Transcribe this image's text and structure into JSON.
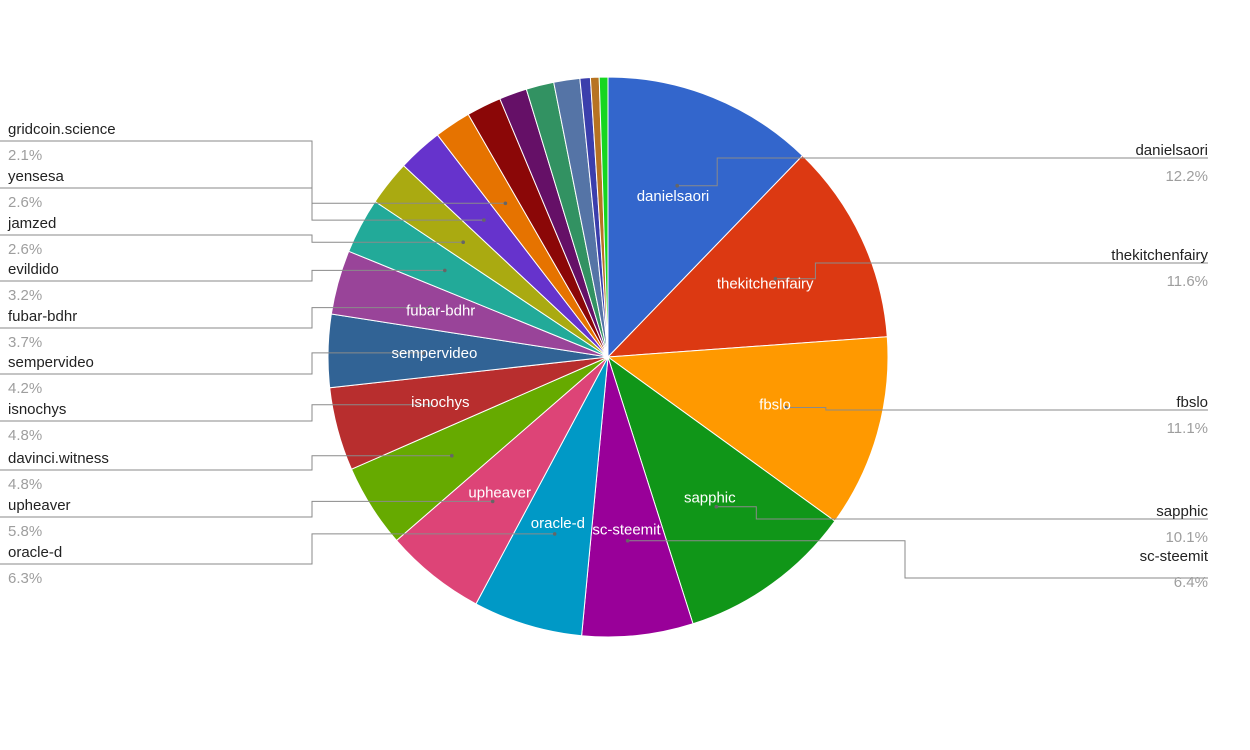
{
  "chart_data": {
    "type": "pie",
    "title": "",
    "start_angle_deg": 0,
    "direction": "clockwise",
    "slices": [
      {
        "label": "danielsaori",
        "value": 12.2,
        "pct": "12.2%",
        "color": "#3366cc",
        "inner": true,
        "legend": true
      },
      {
        "label": "thekitchenfairy",
        "value": 11.6,
        "pct": "11.6%",
        "color": "#dc3912",
        "inner": true,
        "legend": true
      },
      {
        "label": "fbslo",
        "value": 11.1,
        "pct": "11.1%",
        "color": "#ff9900",
        "inner": true,
        "legend": true
      },
      {
        "label": "sapphic",
        "value": 10.1,
        "pct": "10.1%",
        "color": "#109618",
        "inner": true,
        "legend": true
      },
      {
        "label": "sc-steemit",
        "value": 6.4,
        "pct": "6.4%",
        "color": "#990099",
        "inner": true,
        "legend": true
      },
      {
        "label": "oracle-d",
        "value": 6.3,
        "pct": "6.3%",
        "color": "#0099c6",
        "inner": true,
        "legend": true
      },
      {
        "label": "upheaver",
        "value": 5.8,
        "pct": "5.8%",
        "color": "#dd4477",
        "inner": true,
        "legend": true
      },
      {
        "label": "davinci.witness",
        "value": 4.8,
        "pct": "4.8%",
        "color": "#66aa00",
        "inner": false,
        "legend": true
      },
      {
        "label": "isnochys",
        "value": 4.8,
        "pct": "4.8%",
        "color": "#b82e2e",
        "inner": true,
        "legend": true
      },
      {
        "label": "sempervideo",
        "value": 4.2,
        "pct": "4.2%",
        "color": "#316395",
        "inner": true,
        "legend": true
      },
      {
        "label": "fubar-bdhr",
        "value": 3.7,
        "pct": "3.7%",
        "color": "#994499",
        "inner": true,
        "legend": true
      },
      {
        "label": "evildido",
        "value": 3.2,
        "pct": "3.2%",
        "color": "#22aa99",
        "inner": false,
        "legend": true
      },
      {
        "label": "jamzed",
        "value": 2.6,
        "pct": "2.6%",
        "color": "#aaaa11",
        "inner": false,
        "legend": true
      },
      {
        "label": "yensesa",
        "value": 2.6,
        "pct": "2.6%",
        "color": "#6633cc",
        "inner": false,
        "legend": true
      },
      {
        "label": "gridcoin.science",
        "value": 2.1,
        "pct": "2.1%",
        "color": "#e67300",
        "inner": false,
        "legend": true
      },
      {
        "value": 2.0,
        "color": "#8b0707"
      },
      {
        "value": 1.6,
        "color": "#651067"
      },
      {
        "value": 1.6,
        "color": "#329262"
      },
      {
        "value": 1.5,
        "color": "#5574a6"
      },
      {
        "value": 0.6,
        "color": "#3b3eac"
      },
      {
        "value": 0.5,
        "color": "#b77322"
      },
      {
        "value": 0.5,
        "color": "#16d620"
      }
    ]
  }
}
